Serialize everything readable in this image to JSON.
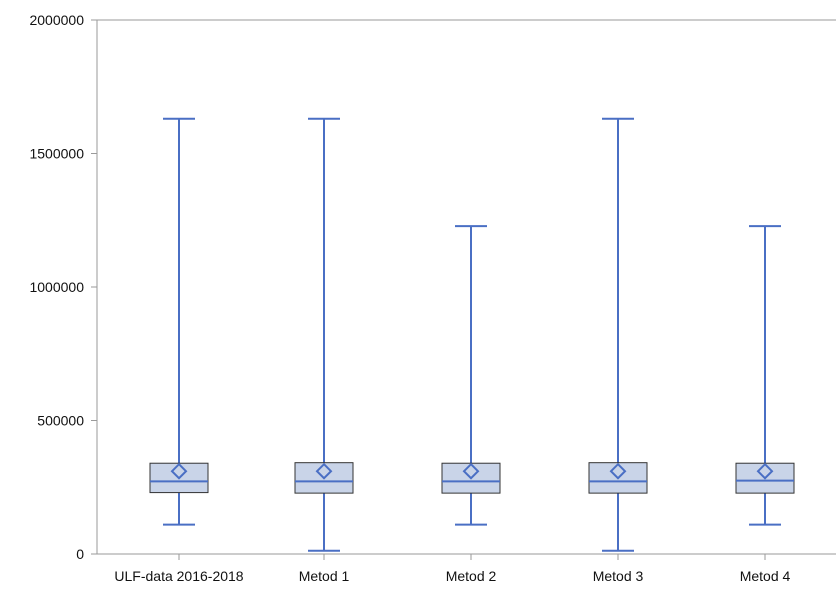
{
  "chart_data": {
    "type": "box",
    "title": "",
    "xlabel": "",
    "ylabel": "",
    "ylim": [
      0,
      2000000
    ],
    "yticks": [
      {
        "value": 0,
        "label": "0"
      },
      {
        "value": 500000,
        "label": "500000"
      },
      {
        "value": 1000000,
        "label": "1000000"
      },
      {
        "value": 1500000,
        "label": "1500000"
      },
      {
        "value": 2000000,
        "label": "2000000"
      }
    ],
    "grid": false,
    "legend": "none",
    "categories": [
      "ULF-data 2016-2018",
      "Metod 1",
      "Metod 2",
      "Metod 3",
      "Metod 4"
    ],
    "boxes": [
      {
        "category": "ULF-data 2016-2018",
        "min": 110000,
        "q1": 230000,
        "median": 272000,
        "q3": 340000,
        "max": 1630000,
        "mean": 310000
      },
      {
        "category": "Metod 1",
        "min": 12000,
        "q1": 228000,
        "median": 272000,
        "q3": 342000,
        "max": 1630000,
        "mean": 310000
      },
      {
        "category": "Metod 2",
        "min": 110000,
        "q1": 228000,
        "median": 272000,
        "q3": 340000,
        "max": 1228000,
        "mean": 310000
      },
      {
        "category": "Metod 3",
        "min": 12000,
        "q1": 228000,
        "median": 272000,
        "q3": 342000,
        "max": 1630000,
        "mean": 310000
      },
      {
        "category": "Metod 4",
        "min": 110000,
        "q1": 228000,
        "median": 275000,
        "q3": 340000,
        "max": 1228000,
        "mean": 310000
      }
    ],
    "colors": {
      "stroke": "#4a6fc4",
      "box_fill": "#c9d4e8",
      "box_edge": "#333333",
      "axis": "#9a9a9a"
    }
  }
}
